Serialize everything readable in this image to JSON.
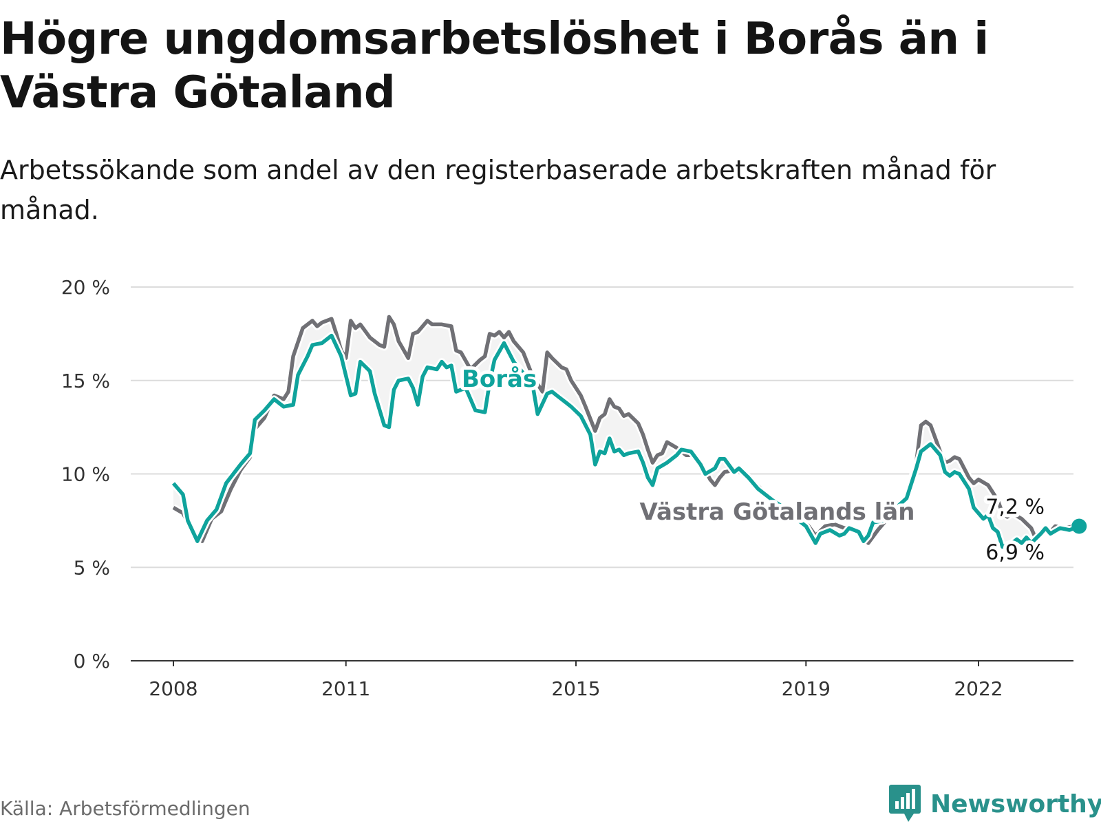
{
  "title": "Högre ungdomsarbetslöshet i Borås än i Västra Götaland",
  "subtitle": "Arbetssökande som andel av den registerbaserade arbetskraften månad för månad.",
  "source": "Källa: Arbetsförmedlingen",
  "logo": {
    "text": "Newsworthy",
    "icon": "newsworthy-chat-bars-icon"
  },
  "colors": {
    "boras": "#0fa39c",
    "vg": "#707075",
    "grid": "#dcdcdc",
    "axis": "#333333",
    "label_halo": "#ffffff",
    "band": "#f3f3f3",
    "logo": "#29918b"
  },
  "chart_data": {
    "type": "line",
    "title": "",
    "xlabel": "",
    "ylabel": "",
    "x_range": [
      "2008-01",
      "2023-12"
    ],
    "ylim": [
      0,
      20
    ],
    "y_ticks": [
      0,
      5,
      10,
      15,
      20
    ],
    "y_tick_labels": [
      "0 %",
      "5 %",
      "10 %",
      "15 %",
      "20 %"
    ],
    "x_ticks": [
      "2008-01",
      "2011-01",
      "2015-01",
      "2019-01",
      "2022-01"
    ],
    "x_tick_labels": [
      "2008",
      "2011",
      "2015",
      "2019",
      "2022"
    ],
    "grid": true,
    "legend": "inline labels",
    "series": [
      {
        "key": "vg",
        "name": "Västra Götalands län",
        "end_label": "6,9 %",
        "points": [
          [
            "2008-01",
            8.2
          ],
          [
            "2008-03",
            7.9
          ],
          [
            "2008-05",
            6.9
          ],
          [
            "2008-07",
            6.4
          ],
          [
            "2008-09",
            7.6
          ],
          [
            "2008-11",
            8.0
          ],
          [
            "2009-01",
            9.2
          ],
          [
            "2009-03",
            10.2
          ],
          [
            "2009-05",
            10.9
          ],
          [
            "2009-06",
            12.4
          ],
          [
            "2009-08",
            13.0
          ],
          [
            "2009-10",
            14.2
          ],
          [
            "2009-12",
            14.0
          ],
          [
            "2010-01",
            14.4
          ],
          [
            "2010-02",
            16.3
          ],
          [
            "2010-04",
            17.8
          ],
          [
            "2010-06",
            18.2
          ],
          [
            "2010-07",
            17.9
          ],
          [
            "2010-08",
            18.1
          ],
          [
            "2010-10",
            18.3
          ],
          [
            "2010-11",
            17.5
          ],
          [
            "2010-12",
            16.6
          ],
          [
            "2011-01",
            16.2
          ],
          [
            "2011-02",
            18.2
          ],
          [
            "2011-03",
            17.8
          ],
          [
            "2011-04",
            18.0
          ],
          [
            "2011-06",
            17.3
          ],
          [
            "2011-08",
            16.9
          ],
          [
            "2011-09",
            16.8
          ],
          [
            "2011-10",
            18.4
          ],
          [
            "2011-11",
            18.0
          ],
          [
            "2011-12",
            17.1
          ],
          [
            "2012-02",
            16.2
          ],
          [
            "2012-03",
            17.5
          ],
          [
            "2012-04",
            17.6
          ],
          [
            "2012-06",
            18.2
          ],
          [
            "2012-07",
            18.0
          ],
          [
            "2012-09",
            18.0
          ],
          [
            "2012-11",
            17.9
          ],
          [
            "2012-12",
            16.6
          ],
          [
            "2013-01",
            16.5
          ],
          [
            "2013-03",
            15.6
          ],
          [
            "2013-05",
            16.1
          ],
          [
            "2013-06",
            16.3
          ],
          [
            "2013-07",
            17.5
          ],
          [
            "2013-08",
            17.4
          ],
          [
            "2013-09",
            17.6
          ],
          [
            "2013-10",
            17.3
          ],
          [
            "2013-11",
            17.6
          ],
          [
            "2013-12",
            17.1
          ],
          [
            "2014-02",
            16.5
          ],
          [
            "2014-04",
            15.2
          ],
          [
            "2014-06",
            14.4
          ],
          [
            "2014-07",
            16.5
          ],
          [
            "2014-08",
            16.2
          ],
          [
            "2014-10",
            15.7
          ],
          [
            "2014-11",
            15.6
          ],
          [
            "2014-12",
            15.0
          ],
          [
            "2015-02",
            14.2
          ],
          [
            "2015-03",
            13.6
          ],
          [
            "2015-05",
            12.3
          ],
          [
            "2015-06",
            13.0
          ],
          [
            "2015-07",
            13.2
          ],
          [
            "2015-08",
            14.0
          ],
          [
            "2015-09",
            13.6
          ],
          [
            "2015-10",
            13.5
          ],
          [
            "2015-11",
            13.1
          ],
          [
            "2015-12",
            13.2
          ],
          [
            "2016-02",
            12.7
          ],
          [
            "2016-03",
            12.1
          ],
          [
            "2016-04",
            11.3
          ],
          [
            "2016-05",
            10.6
          ],
          [
            "2016-06",
            11.0
          ],
          [
            "2016-07",
            11.1
          ],
          [
            "2016-08",
            11.7
          ],
          [
            "2016-10",
            11.4
          ],
          [
            "2016-12",
            11.0
          ],
          [
            "2017-02",
            11.0
          ],
          [
            "2017-04",
            10.2
          ],
          [
            "2017-05",
            9.7
          ],
          [
            "2017-06",
            9.4
          ],
          [
            "2017-07",
            9.8
          ],
          [
            "2017-08",
            10.1
          ],
          [
            "2017-10",
            10.2
          ],
          [
            "2017-12",
            10.0
          ],
          [
            "2018-02",
            9.6
          ],
          [
            "2018-04",
            9.1
          ],
          [
            "2018-07",
            8.5
          ],
          [
            "2018-09",
            8.2
          ],
          [
            "2018-11",
            7.8
          ],
          [
            "2019-01",
            7.4
          ],
          [
            "2019-03",
            6.7
          ],
          [
            "2019-05",
            7.2
          ],
          [
            "2019-07",
            7.3
          ],
          [
            "2019-09",
            7.1
          ],
          [
            "2019-11",
            7.1
          ],
          [
            "2020-01",
            6.6
          ],
          [
            "2020-02",
            6.3
          ],
          [
            "2020-04",
            7.0
          ],
          [
            "2020-06",
            7.6
          ],
          [
            "2020-08",
            8.0
          ],
          [
            "2020-10",
            8.7
          ],
          [
            "2020-12",
            10.6
          ],
          [
            "2021-01",
            12.6
          ],
          [
            "2021-02",
            12.8
          ],
          [
            "2021-03",
            12.6
          ],
          [
            "2021-05",
            11.2
          ],
          [
            "2021-06",
            10.6
          ],
          [
            "2021-07",
            10.7
          ],
          [
            "2021-08",
            10.9
          ],
          [
            "2021-09",
            10.8
          ],
          [
            "2021-11",
            9.8
          ],
          [
            "2021-12",
            9.5
          ],
          [
            "2022-01",
            9.7
          ],
          [
            "2022-03",
            9.4
          ],
          [
            "2022-05",
            8.6
          ],
          [
            "2022-06",
            7.9
          ],
          [
            "2022-07",
            7.7
          ],
          [
            "2022-08",
            7.9
          ],
          [
            "2022-10",
            7.6
          ],
          [
            "2022-12",
            7.1
          ],
          [
            "2023-01",
            6.5
          ],
          [
            "2023-02",
            6.9
          ],
          [
            "2023-04",
            6.9
          ],
          [
            "2023-05",
            7.2
          ],
          [
            "2023-07",
            7.1
          ],
          [
            "2023-09",
            7.2
          ],
          [
            "2023-10",
            6.9
          ]
        ]
      },
      {
        "key": "boras",
        "name": "Borås",
        "end_label": "7,2 %",
        "points": [
          [
            "2008-01",
            9.5
          ],
          [
            "2008-03",
            8.9
          ],
          [
            "2008-04",
            7.5
          ],
          [
            "2008-06",
            6.4
          ],
          [
            "2008-08",
            7.5
          ],
          [
            "2008-10",
            8.1
          ],
          [
            "2008-12",
            9.5
          ],
          [
            "2009-03",
            10.5
          ],
          [
            "2009-05",
            11.1
          ],
          [
            "2009-06",
            12.9
          ],
          [
            "2009-08",
            13.4
          ],
          [
            "2009-10",
            14.0
          ],
          [
            "2009-12",
            13.6
          ],
          [
            "2010-02",
            13.7
          ],
          [
            "2010-03",
            15.3
          ],
          [
            "2010-05",
            16.3
          ],
          [
            "2010-06",
            16.9
          ],
          [
            "2010-08",
            17.0
          ],
          [
            "2010-10",
            17.4
          ],
          [
            "2010-12",
            16.3
          ],
          [
            "2011-02",
            14.2
          ],
          [
            "2011-03",
            14.3
          ],
          [
            "2011-04",
            16.0
          ],
          [
            "2011-06",
            15.5
          ],
          [
            "2011-07",
            14.3
          ],
          [
            "2011-09",
            12.6
          ],
          [
            "2011-10",
            12.5
          ],
          [
            "2011-11",
            14.5
          ],
          [
            "2011-12",
            15.0
          ],
          [
            "2012-02",
            15.1
          ],
          [
            "2012-03",
            14.6
          ],
          [
            "2012-04",
            13.7
          ],
          [
            "2012-05",
            15.2
          ],
          [
            "2012-06",
            15.7
          ],
          [
            "2012-08",
            15.6
          ],
          [
            "2012-09",
            16.0
          ],
          [
            "2012-10",
            15.7
          ],
          [
            "2012-11",
            15.8
          ],
          [
            "2012-12",
            14.4
          ],
          [
            "2013-02",
            14.6
          ],
          [
            "2013-04",
            13.4
          ],
          [
            "2013-06",
            13.3
          ],
          [
            "2013-07",
            14.9
          ],
          [
            "2013-08",
            16.1
          ],
          [
            "2013-10",
            17.0
          ],
          [
            "2013-12",
            16.0
          ],
          [
            "2014-02",
            15.4
          ],
          [
            "2014-04",
            14.7
          ],
          [
            "2014-05",
            13.2
          ],
          [
            "2014-07",
            14.3
          ],
          [
            "2014-08",
            14.4
          ],
          [
            "2014-09",
            14.2
          ],
          [
            "2014-11",
            13.8
          ],
          [
            "2014-12",
            13.6
          ],
          [
            "2015-02",
            13.1
          ],
          [
            "2015-04",
            12.1
          ],
          [
            "2015-05",
            10.5
          ],
          [
            "2015-06",
            11.2
          ],
          [
            "2015-07",
            11.1
          ],
          [
            "2015-08",
            11.9
          ],
          [
            "2015-09",
            11.2
          ],
          [
            "2015-10",
            11.3
          ],
          [
            "2015-11",
            11.0
          ],
          [
            "2015-12",
            11.1
          ],
          [
            "2016-02",
            11.2
          ],
          [
            "2016-03",
            10.6
          ],
          [
            "2016-04",
            9.8
          ],
          [
            "2016-05",
            9.4
          ],
          [
            "2016-06",
            10.3
          ],
          [
            "2016-08",
            10.6
          ],
          [
            "2016-10",
            11.0
          ],
          [
            "2016-11",
            11.3
          ],
          [
            "2017-01",
            11.2
          ],
          [
            "2017-03",
            10.5
          ],
          [
            "2017-04",
            10.0
          ],
          [
            "2017-06",
            10.3
          ],
          [
            "2017-07",
            10.8
          ],
          [
            "2017-08",
            10.8
          ],
          [
            "2017-10",
            10.1
          ],
          [
            "2017-11",
            10.3
          ],
          [
            "2018-01",
            9.8
          ],
          [
            "2018-03",
            9.2
          ],
          [
            "2018-06",
            8.6
          ],
          [
            "2018-09",
            8.1
          ],
          [
            "2018-11",
            7.6
          ],
          [
            "2019-01",
            7.2
          ],
          [
            "2019-03",
            6.3
          ],
          [
            "2019-04",
            6.8
          ],
          [
            "2019-06",
            7.0
          ],
          [
            "2019-08",
            6.7
          ],
          [
            "2019-09",
            6.8
          ],
          [
            "2019-10",
            7.1
          ],
          [
            "2019-12",
            6.9
          ],
          [
            "2020-01",
            6.4
          ],
          [
            "2020-02",
            6.7
          ],
          [
            "2020-03",
            7.4
          ],
          [
            "2020-05",
            7.5
          ],
          [
            "2020-07",
            8.0
          ],
          [
            "2020-10",
            8.7
          ],
          [
            "2020-12",
            10.3
          ],
          [
            "2021-01",
            11.2
          ],
          [
            "2021-03",
            11.6
          ],
          [
            "2021-05",
            11.0
          ],
          [
            "2021-06",
            10.1
          ],
          [
            "2021-07",
            9.9
          ],
          [
            "2021-08",
            10.1
          ],
          [
            "2021-09",
            10.0
          ],
          [
            "2021-11",
            9.2
          ],
          [
            "2021-12",
            8.2
          ],
          [
            "2022-02",
            7.6
          ],
          [
            "2022-03",
            7.8
          ],
          [
            "2022-04",
            7.1
          ],
          [
            "2022-05",
            6.9
          ],
          [
            "2022-06",
            6.1
          ],
          [
            "2022-08",
            6.3
          ],
          [
            "2022-09",
            6.5
          ],
          [
            "2022-10",
            6.3
          ],
          [
            "2022-11",
            6.6
          ],
          [
            "2022-12",
            6.3
          ],
          [
            "2023-02",
            6.8
          ],
          [
            "2023-03",
            7.1
          ],
          [
            "2023-04",
            6.8
          ],
          [
            "2023-06",
            7.1
          ],
          [
            "2023-08",
            7.0
          ],
          [
            "2023-10",
            7.2
          ]
        ]
      }
    ],
    "annotations": [
      {
        "text": "Borås",
        "series": "boras",
        "at": [
          "2013-09",
          15.1
        ]
      },
      {
        "text": "Västra Götalands län",
        "series": "vg",
        "at": [
          "2018-07",
          8.0
        ]
      }
    ]
  }
}
